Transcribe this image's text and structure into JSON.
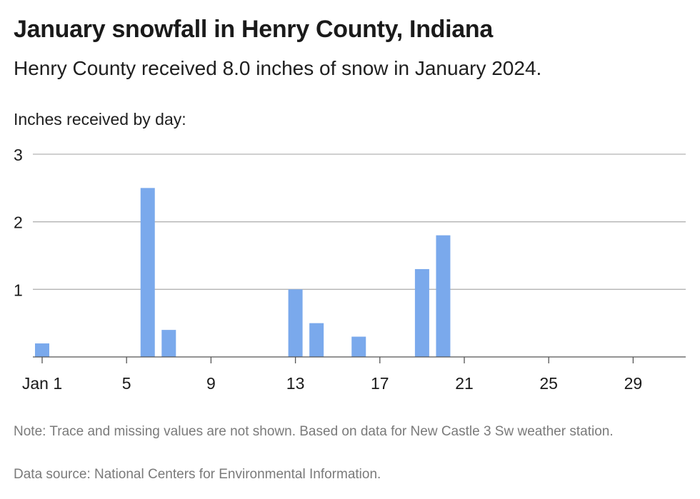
{
  "header": {
    "title": "January snowfall in Henry County, Indiana",
    "subtitle": "Henry County received 8.0 inches of snow in January 2024.",
    "axis_caption": "Inches received by day:"
  },
  "footer": {
    "note": "Note: Trace and missing values are not shown. Based on data for New Castle 3 Sw weather station.",
    "source": "Data source: National Centers for Environmental Information."
  },
  "colors": {
    "bar": "#7aa9ec",
    "gridline": "#b3b3b3",
    "baseline": "#555555"
  },
  "chart_data": {
    "type": "bar",
    "title": "January snowfall in Henry County, Indiana",
    "subtitle": "Henry County received 8.0 inches of snow in January 2024.",
    "ylabel": "Inches received by day:",
    "xlabel": "",
    "x": [
      1,
      6,
      7,
      13,
      14,
      16,
      19,
      20
    ],
    "values": [
      0.2,
      2.5,
      0.4,
      1.0,
      0.5,
      0.3,
      1.3,
      1.8
    ],
    "xlim": [
      1,
      31
    ],
    "ylim": [
      0,
      3
    ],
    "y_ticks": [
      1,
      2,
      3
    ],
    "y_tick_labels": [
      "1",
      "2",
      "3"
    ],
    "x_ticks": [
      1,
      5,
      9,
      13,
      17,
      21,
      25,
      29
    ],
    "x_tick_labels": [
      "Jan 1",
      "5",
      "9",
      "13",
      "17",
      "21",
      "25",
      "29"
    ],
    "grid": true,
    "legend": "none"
  }
}
